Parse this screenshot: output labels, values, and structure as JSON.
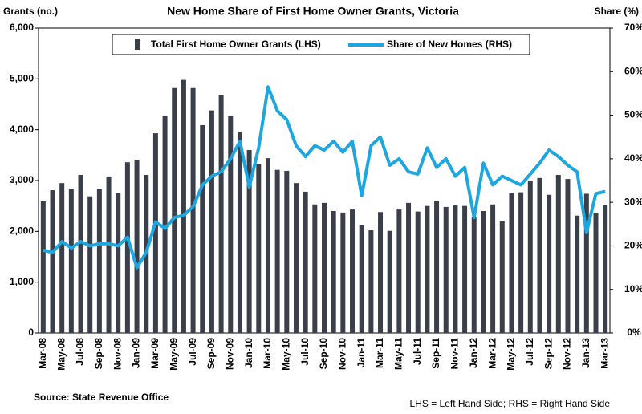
{
  "chart_data": {
    "type": "bar",
    "title": "New Home Share of First Home Owner Grants, Victoria",
    "y_label": "Grants (no.)",
    "y2_label": "Share (%)",
    "source": "Source: State Revenue Office",
    "note": "LHS = Left Hand Side; RHS = Right Hand Side",
    "categories": [
      "Mar-08",
      null,
      "May-08",
      null,
      "Jul-08",
      null,
      "Sep-08",
      null,
      "Nov-08",
      null,
      "Jan-09",
      null,
      "Mar-09",
      null,
      "May-09",
      null,
      "Jul-09",
      null,
      "Sep-09",
      null,
      "Nov-09",
      null,
      "Jan-10",
      null,
      "Mar-10",
      null,
      "May-10",
      null,
      "Jul-10",
      null,
      "Sep-10",
      null,
      "Nov-10",
      null,
      "Jan-11",
      null,
      "Mar-11",
      null,
      "May-11",
      null,
      "Jul-11",
      null,
      "Sep-11",
      null,
      "Nov-11",
      null,
      "Jan-12",
      null,
      "Mar-12",
      null,
      "May-12",
      null,
      "Jul-12",
      null,
      "Sep-12",
      null,
      "Nov-12",
      null,
      "Jan-13",
      null,
      "Mar-13"
    ],
    "series": [
      {
        "name": "Total First Home Owner Grants (LHS)",
        "type": "bar",
        "color": "#3b3f4a",
        "values": [
          2590,
          2810,
          2950,
          2840,
          3110,
          2690,
          2830,
          3080,
          2760,
          3360,
          3410,
          3110,
          3930,
          4280,
          4820,
          4980,
          4820,
          4090,
          4380,
          4680,
          4280,
          3950,
          3600,
          3320,
          3440,
          3210,
          3190,
          2950,
          2780,
          2530,
          2560,
          2400,
          2370,
          2430,
          2130,
          2020,
          2380,
          2010,
          2430,
          2560,
          2390,
          2500,
          2590,
          2480,
          2510,
          2500,
          2290,
          2400,
          2530,
          2200,
          2760,
          2770,
          3000,
          3050,
          2720,
          3110,
          3030,
          2310,
          2740,
          2360,
          2520
        ]
      },
      {
        "name": "Share of New Homes (RHS)",
        "type": "line",
        "axis": "y2",
        "color": "#1ea6e0",
        "values": [
          19,
          18.5,
          21,
          19.5,
          21,
          20,
          20.5,
          20.5,
          20,
          22,
          15,
          18.5,
          25.5,
          24,
          26.5,
          27,
          29,
          34,
          36,
          37,
          40,
          44,
          33.5,
          42.5,
          56.5,
          51,
          49,
          43,
          40.5,
          43,
          42,
          44,
          41.5,
          44,
          31.5,
          43,
          45,
          38.5,
          40,
          37,
          36.5,
          42.5,
          38,
          40,
          36,
          38,
          26.5,
          39,
          34,
          36,
          35,
          34,
          36.5,
          39,
          42,
          40.5,
          38.5,
          37,
          23,
          32,
          32.5
        ]
      }
    ],
    "ylim": [
      0,
      6000
    ],
    "yticks": [
      0,
      {
        "value": 1000,
        "label": "1,000"
      },
      {
        "value": 2000,
        "label": "2,000"
      },
      {
        "value": 3000,
        "label": "3,000"
      },
      {
        "value": 4000,
        "label": "4,000"
      },
      {
        "value": 5000,
        "label": "5,000"
      },
      {
        "value": 6000,
        "label": "6,000"
      }
    ],
    "y2lim": [
      0,
      70
    ],
    "y2ticks": [
      {
        "value": 0,
        "label": "0%"
      },
      {
        "value": 10,
        "label": "10%"
      },
      {
        "value": 20,
        "label": "20%"
      },
      {
        "value": 30,
        "label": "30%"
      },
      {
        "value": 40,
        "label": "40%"
      },
      {
        "value": 50,
        "label": "50%"
      },
      {
        "value": 60,
        "label": "60%"
      },
      {
        "value": 70,
        "label": "70%"
      }
    ],
    "legend": "top"
  }
}
